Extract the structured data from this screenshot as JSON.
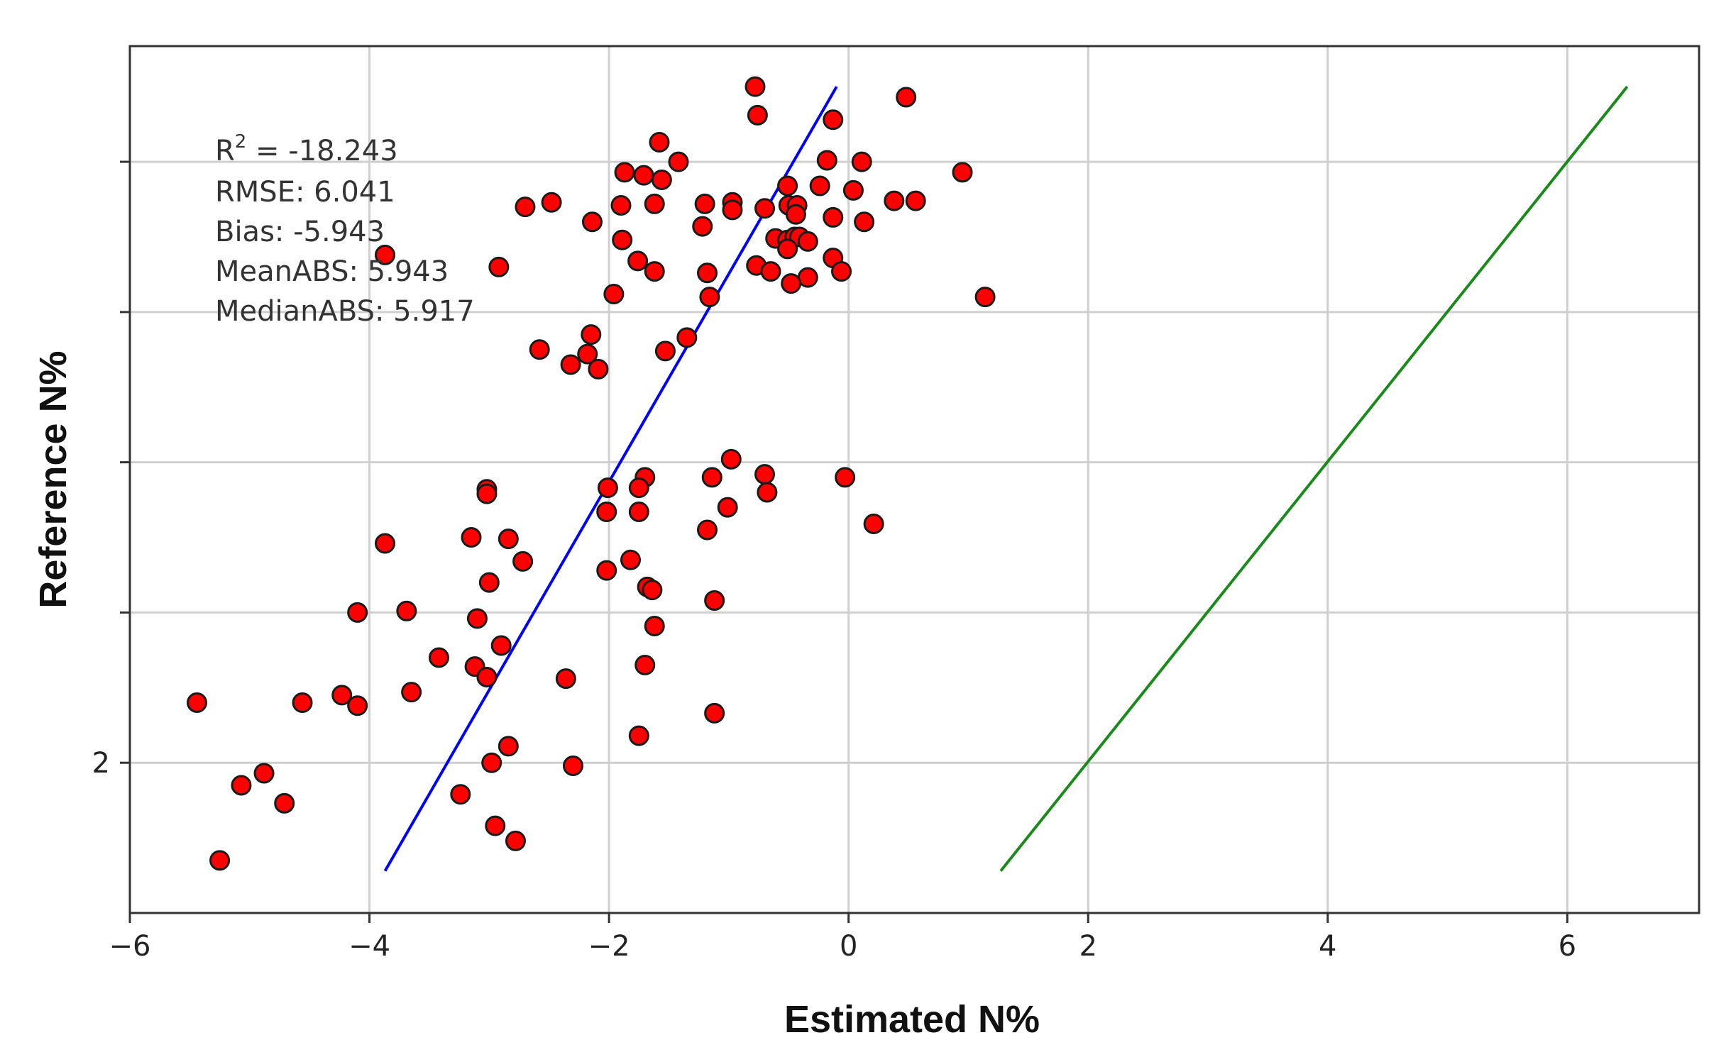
{
  "chart_data": {
    "type": "scatter",
    "title": "",
    "xlabel": "Estimated N%",
    "ylabel": "Reference N%",
    "xlim": [
      -6,
      7.1
    ],
    "ylim": [
      1.0,
      6.77
    ],
    "xticks": [
      -6,
      -4,
      -2,
      0,
      2,
      4,
      6
    ],
    "xtick_labels": [
      "−6",
      "−4",
      "−2",
      "0",
      "2",
      "4",
      "6"
    ],
    "yticks": [
      2,
      3,
      4,
      5,
      6
    ],
    "ytick_labels": [
      "2",
      "",
      "",
      "",
      ""
    ],
    "grid": true,
    "stats": {
      "r2_prefix": "R",
      "r2_sup": "2",
      "r2_value": " = -18.243",
      "rmse": "RMSE: 6.041",
      "bias": "Bias: -5.943",
      "mean_abs": "MeanABS: 5.943",
      "median_abs": "MedianABS: 5.917"
    },
    "fit_line": {
      "name": "regression fit",
      "color": "#0000ff",
      "points": [
        [
          -3.87,
          1.28
        ],
        [
          -0.1,
          6.5
        ]
      ]
    },
    "one_to_one_line": {
      "name": "1:1 line",
      "color": "#1a8a1a",
      "points": [
        [
          1.27,
          1.28
        ],
        [
          6.5,
          6.5
        ]
      ]
    },
    "point_style": {
      "fill": "#ff0000",
      "stroke": "#1a1a1a"
    },
    "series": [
      {
        "name": "samples",
        "points": [
          [
            -0.78,
            6.5
          ],
          [
            -0.76,
            6.31
          ],
          [
            0.48,
            6.43
          ],
          [
            -0.13,
            6.28
          ],
          [
            -1.58,
            6.13
          ],
          [
            -1.42,
            6.0
          ],
          [
            -1.87,
            5.93
          ],
          [
            -1.71,
            5.91
          ],
          [
            -1.56,
            5.88
          ],
          [
            -0.18,
            6.01
          ],
          [
            0.11,
            6.0
          ],
          [
            0.95,
            5.93
          ],
          [
            -0.24,
            5.84
          ],
          [
            -0.51,
            5.84
          ],
          [
            0.04,
            5.81
          ],
          [
            -2.48,
            5.73
          ],
          [
            -2.7,
            5.7
          ],
          [
            -1.9,
            5.71
          ],
          [
            -1.62,
            5.72
          ],
          [
            -1.2,
            5.72
          ],
          [
            -0.97,
            5.73
          ],
          [
            -0.97,
            5.68
          ],
          [
            -0.7,
            5.69
          ],
          [
            -0.5,
            5.71
          ],
          [
            -0.43,
            5.71
          ],
          [
            0.38,
            5.74
          ],
          [
            0.56,
            5.74
          ],
          [
            -0.44,
            5.65
          ],
          [
            -0.13,
            5.63
          ],
          [
            0.13,
            5.6
          ],
          [
            -2.14,
            5.6
          ],
          [
            -1.22,
            5.57
          ],
          [
            -1.89,
            5.48
          ],
          [
            -0.61,
            5.49
          ],
          [
            -0.51,
            5.48
          ],
          [
            -0.45,
            5.5
          ],
          [
            -0.41,
            5.5
          ],
          [
            -0.34,
            5.47
          ],
          [
            -0.51,
            5.42
          ],
          [
            -3.87,
            5.38
          ],
          [
            -2.92,
            5.3
          ],
          [
            -1.76,
            5.34
          ],
          [
            -1.62,
            5.27
          ],
          [
            -1.18,
            5.26
          ],
          [
            -0.77,
            5.31
          ],
          [
            -0.65,
            5.27
          ],
          [
            -0.34,
            5.23
          ],
          [
            -0.48,
            5.19
          ],
          [
            -0.13,
            5.36
          ],
          [
            -0.06,
            5.27
          ],
          [
            1.14,
            5.1
          ],
          [
            -1.96,
            5.12
          ],
          [
            -1.16,
            5.1
          ],
          [
            -2.15,
            4.85
          ],
          [
            -1.35,
            4.83
          ],
          [
            -2.58,
            4.75
          ],
          [
            -1.53,
            4.74
          ],
          [
            -2.18,
            4.72
          ],
          [
            -2.32,
            4.65
          ],
          [
            -2.09,
            4.62
          ],
          [
            -0.98,
            4.02
          ],
          [
            -1.14,
            3.9
          ],
          [
            -0.7,
            3.92
          ],
          [
            -0.03,
            3.9
          ],
          [
            -1.7,
            3.9
          ],
          [
            -2.01,
            3.83
          ],
          [
            -1.75,
            3.83
          ],
          [
            -3.02,
            3.82
          ],
          [
            -3.02,
            3.79
          ],
          [
            -0.68,
            3.8
          ],
          [
            -1.01,
            3.7
          ],
          [
            -2.02,
            3.67
          ],
          [
            -1.75,
            3.67
          ],
          [
            0.21,
            3.59
          ],
          [
            -1.18,
            3.55
          ],
          [
            -3.87,
            3.46
          ],
          [
            -3.15,
            3.5
          ],
          [
            -2.84,
            3.49
          ],
          [
            -2.72,
            3.34
          ],
          [
            -1.82,
            3.35
          ],
          [
            -2.02,
            3.28
          ],
          [
            -1.68,
            3.17
          ],
          [
            -3.0,
            3.2
          ],
          [
            -1.64,
            3.15
          ],
          [
            -1.12,
            3.08
          ],
          [
            -4.1,
            3.0
          ],
          [
            -3.69,
            3.01
          ],
          [
            -3.1,
            2.96
          ],
          [
            -1.62,
            2.91
          ],
          [
            -2.9,
            2.78
          ],
          [
            -3.42,
            2.7
          ],
          [
            -1.7,
            2.65
          ],
          [
            -3.12,
            2.64
          ],
          [
            -3.02,
            2.57
          ],
          [
            -2.36,
            2.56
          ],
          [
            -3.65,
            2.47
          ],
          [
            -4.23,
            2.45
          ],
          [
            -4.1,
            2.38
          ],
          [
            -4.56,
            2.4
          ],
          [
            -5.44,
            2.4
          ],
          [
            -1.12,
            2.33
          ],
          [
            -2.84,
            2.11
          ],
          [
            -1.75,
            2.18
          ],
          [
            -2.98,
            2.0
          ],
          [
            -2.3,
            1.98
          ],
          [
            -4.88,
            1.93
          ],
          [
            -5.07,
            1.85
          ],
          [
            -4.71,
            1.73
          ],
          [
            -3.24,
            1.79
          ],
          [
            -2.95,
            1.58
          ],
          [
            -2.78,
            1.48
          ],
          [
            -5.25,
            1.35
          ]
        ]
      }
    ]
  }
}
